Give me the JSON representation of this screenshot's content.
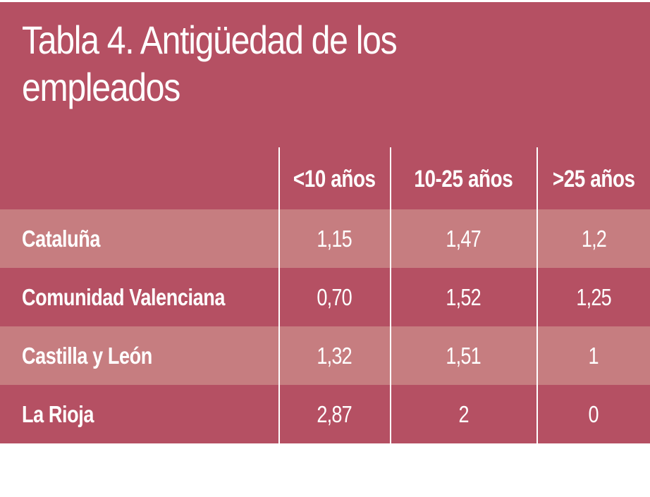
{
  "table": {
    "title": "Tabla 4. Antigüedad de los empleados",
    "header_colors": {
      "background": "#b55063",
      "row_light": "#c67d80",
      "text": "#ffffff"
    },
    "columns": [
      "<10 años",
      "10-25 años",
      ">25 años"
    ],
    "rows": [
      {
        "region": "Cataluña",
        "values": [
          "1,15",
          "1,47",
          "1,2"
        ]
      },
      {
        "region": "Comunidad Valenciana",
        "values": [
          "0,70",
          "1,52",
          "1,25"
        ]
      },
      {
        "region": "Castilla y León",
        "values": [
          "1,32",
          "1,51",
          "1"
        ]
      },
      {
        "region": "La Rioja",
        "values": [
          "2,87",
          "2",
          "0"
        ]
      }
    ]
  }
}
